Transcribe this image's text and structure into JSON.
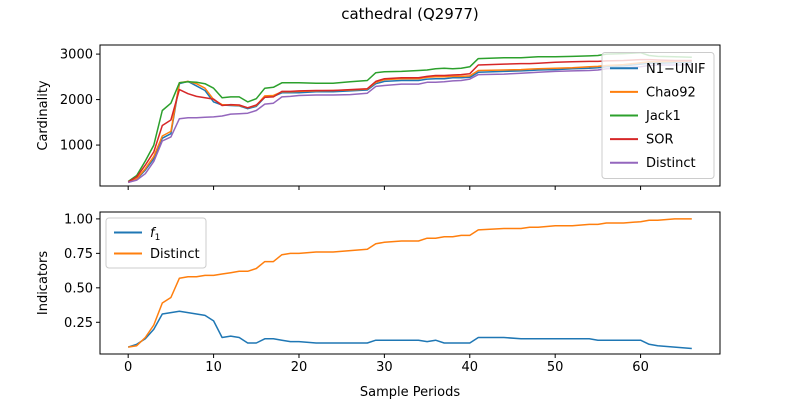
{
  "figure_title": "cathedral (Q2977)",
  "chart_data": [
    {
      "type": "line",
      "ylabel": "Cardinality",
      "xlabel": "",
      "xlim": [
        -3.3,
        69.3
      ],
      "ylim": [
        100,
        3200
      ],
      "xticks": [
        0,
        10,
        20,
        30,
        40,
        50,
        60
      ],
      "yticks": [
        1000,
        2000,
        3000
      ],
      "ytick_labels": [
        "1000",
        "2000",
        "3000"
      ],
      "legend_position": "center-right",
      "series": [
        {
          "name": "N1−UNIF",
          "color": "#1f77b4",
          "x": [
            0,
            1,
            2,
            3,
            4,
            5,
            6,
            7,
            8,
            9,
            10,
            11,
            12,
            13,
            14,
            15,
            16,
            17,
            18,
            19,
            20,
            22,
            24,
            26,
            28,
            29,
            30,
            32,
            34,
            35,
            36,
            37,
            38,
            39,
            40,
            41,
            44,
            46,
            47,
            48,
            50,
            52,
            54,
            55,
            56,
            58,
            60,
            61,
            62,
            64,
            66
          ],
          "values": [
            180,
            250,
            450,
            700,
            1150,
            1250,
            2350,
            2400,
            2300,
            2200,
            1950,
            1880,
            1870,
            1860,
            1800,
            1850,
            2050,
            2070,
            2150,
            2150,
            2150,
            2170,
            2170,
            2190,
            2210,
            2350,
            2400,
            2420,
            2420,
            2450,
            2460,
            2460,
            2480,
            2480,
            2490,
            2600,
            2620,
            2630,
            2640,
            2650,
            2660,
            2680,
            2690,
            2700,
            2720,
            2740,
            2780,
            2800,
            2800,
            2810,
            2820
          ]
        },
        {
          "name": "Chao92",
          "color": "#ff7f0e",
          "x": [
            0,
            1,
            2,
            3,
            4,
            5,
            6,
            7,
            8,
            9,
            10,
            11,
            12,
            13,
            14,
            15,
            16,
            17,
            18,
            19,
            20,
            22,
            24,
            26,
            28,
            29,
            30,
            32,
            34,
            35,
            36,
            37,
            38,
            39,
            40,
            41,
            44,
            46,
            47,
            48,
            50,
            52,
            54,
            55,
            56,
            58,
            60,
            61,
            62,
            64,
            66
          ],
          "values": [
            180,
            260,
            480,
            750,
            1200,
            1300,
            2370,
            2400,
            2350,
            2250,
            2000,
            1890,
            1880,
            1870,
            1820,
            1870,
            2080,
            2090,
            2170,
            2170,
            2180,
            2190,
            2200,
            2210,
            2230,
            2380,
            2440,
            2460,
            2460,
            2490,
            2500,
            2500,
            2510,
            2510,
            2520,
            2640,
            2650,
            2660,
            2670,
            2680,
            2690,
            2700,
            2720,
            2730,
            2750,
            2770,
            2810,
            2830,
            2830,
            2840,
            2850
          ]
        },
        {
          "name": "Jack1",
          "color": "#2ca02c",
          "x": [
            0,
            1,
            2,
            3,
            4,
            5,
            6,
            7,
            8,
            9,
            10,
            11,
            12,
            13,
            14,
            15,
            16,
            17,
            18,
            19,
            20,
            22,
            24,
            26,
            28,
            29,
            30,
            32,
            34,
            35,
            36,
            37,
            38,
            39,
            40,
            41,
            44,
            46,
            47,
            48,
            50,
            52,
            54,
            55,
            56,
            58,
            60,
            61,
            62,
            64,
            66
          ],
          "values": [
            200,
            330,
            650,
            1000,
            1760,
            1920,
            2370,
            2390,
            2380,
            2350,
            2250,
            2040,
            2060,
            2060,
            1950,
            2020,
            2250,
            2270,
            2370,
            2370,
            2370,
            2360,
            2360,
            2390,
            2420,
            2590,
            2610,
            2620,
            2640,
            2650,
            2680,
            2690,
            2680,
            2690,
            2720,
            2900,
            2920,
            2920,
            2930,
            2940,
            2940,
            2950,
            2960,
            2970,
            3000,
            3010,
            3030,
            2970,
            2950,
            2940,
            2930
          ]
        },
        {
          "name": "SOR",
          "color": "#d62728",
          "x": [
            0,
            1,
            2,
            3,
            4,
            5,
            6,
            7,
            8,
            9,
            10,
            11,
            12,
            13,
            14,
            15,
            16,
            17,
            18,
            19,
            20,
            22,
            24,
            26,
            28,
            29,
            30,
            32,
            34,
            35,
            36,
            37,
            38,
            39,
            40,
            41,
            44,
            46,
            47,
            48,
            50,
            52,
            54,
            55,
            56,
            58,
            60,
            61,
            62,
            64,
            66
          ],
          "values": [
            190,
            300,
            560,
            850,
            1430,
            1550,
            2220,
            2130,
            2070,
            2040,
            2010,
            1870,
            1890,
            1880,
            1820,
            1880,
            2050,
            2060,
            2180,
            2180,
            2190,
            2200,
            2200,
            2220,
            2240,
            2400,
            2460,
            2480,
            2480,
            2510,
            2530,
            2530,
            2540,
            2550,
            2570,
            2760,
            2780,
            2790,
            2790,
            2800,
            2820,
            2830,
            2840,
            2840,
            2850,
            2860,
            2880,
            2880,
            2870,
            2860,
            2860
          ]
        },
        {
          "name": "Distinct",
          "color": "#9467bd",
          "x": [
            0,
            1,
            2,
            3,
            4,
            5,
            6,
            7,
            8,
            9,
            10,
            11,
            12,
            13,
            14,
            15,
            16,
            17,
            18,
            19,
            20,
            22,
            24,
            26,
            28,
            29,
            30,
            32,
            34,
            35,
            36,
            37,
            38,
            39,
            40,
            41,
            44,
            46,
            47,
            48,
            50,
            52,
            54,
            55,
            56,
            58,
            60,
            61,
            62,
            64,
            66
          ],
          "values": [
            180,
            230,
            370,
            640,
            1090,
            1180,
            1580,
            1600,
            1600,
            1610,
            1620,
            1640,
            1680,
            1690,
            1700,
            1760,
            1900,
            1920,
            2060,
            2070,
            2090,
            2100,
            2100,
            2110,
            2140,
            2290,
            2310,
            2340,
            2340,
            2380,
            2380,
            2390,
            2410,
            2420,
            2450,
            2550,
            2560,
            2580,
            2590,
            2600,
            2620,
            2630,
            2640,
            2650,
            2680,
            2700,
            2720,
            2750,
            2760,
            2760,
            2770
          ]
        }
      ]
    },
    {
      "type": "line",
      "ylabel": "Indicators",
      "xlabel": "Sample Periods",
      "xlim": [
        -3.3,
        69.3
      ],
      "ylim": [
        0.02,
        1.05
      ],
      "xticks": [
        0,
        10,
        20,
        30,
        40,
        50,
        60
      ],
      "yticks": [
        0.25,
        0.5,
        0.75,
        1.0
      ],
      "ytick_labels": [
        "0.25",
        "0.50",
        "0.75",
        "1.00"
      ],
      "legend_position": "upper-left",
      "series": [
        {
          "name": "f",
          "subscript": "1",
          "color": "#1f77b4",
          "x": [
            0,
            1,
            2,
            3,
            4,
            5,
            6,
            7,
            8,
            9,
            10,
            11,
            12,
            13,
            14,
            15,
            16,
            17,
            18,
            19,
            20,
            22,
            24,
            26,
            28,
            29,
            30,
            32,
            34,
            35,
            36,
            37,
            38,
            39,
            40,
            41,
            44,
            46,
            47,
            48,
            50,
            52,
            54,
            55,
            56,
            58,
            60,
            61,
            62,
            64,
            66
          ],
          "values": [
            0.07,
            0.09,
            0.13,
            0.2,
            0.31,
            0.32,
            0.33,
            0.32,
            0.31,
            0.3,
            0.26,
            0.14,
            0.15,
            0.14,
            0.1,
            0.1,
            0.13,
            0.13,
            0.12,
            0.11,
            0.11,
            0.1,
            0.1,
            0.1,
            0.1,
            0.12,
            0.12,
            0.12,
            0.12,
            0.11,
            0.12,
            0.1,
            0.1,
            0.1,
            0.1,
            0.14,
            0.14,
            0.13,
            0.13,
            0.13,
            0.13,
            0.13,
            0.13,
            0.12,
            0.12,
            0.12,
            0.12,
            0.09,
            0.08,
            0.07,
            0.06
          ]
        },
        {
          "name": "Distinct",
          "color": "#ff7f0e",
          "x": [
            0,
            1,
            2,
            3,
            4,
            5,
            6,
            7,
            8,
            9,
            10,
            11,
            12,
            13,
            14,
            15,
            16,
            17,
            18,
            19,
            20,
            22,
            24,
            26,
            28,
            29,
            30,
            32,
            34,
            35,
            36,
            37,
            38,
            39,
            40,
            41,
            44,
            46,
            47,
            48,
            50,
            52,
            54,
            55,
            56,
            58,
            60,
            61,
            62,
            64,
            66
          ],
          "values": [
            0.07,
            0.08,
            0.14,
            0.23,
            0.39,
            0.43,
            0.57,
            0.58,
            0.58,
            0.59,
            0.59,
            0.6,
            0.61,
            0.62,
            0.62,
            0.64,
            0.69,
            0.69,
            0.74,
            0.75,
            0.75,
            0.76,
            0.76,
            0.77,
            0.78,
            0.82,
            0.83,
            0.84,
            0.84,
            0.86,
            0.86,
            0.87,
            0.87,
            0.88,
            0.88,
            0.92,
            0.93,
            0.93,
            0.94,
            0.94,
            0.95,
            0.95,
            0.96,
            0.96,
            0.97,
            0.97,
            0.98,
            0.99,
            0.99,
            1.0,
            1.0
          ]
        }
      ]
    }
  ]
}
